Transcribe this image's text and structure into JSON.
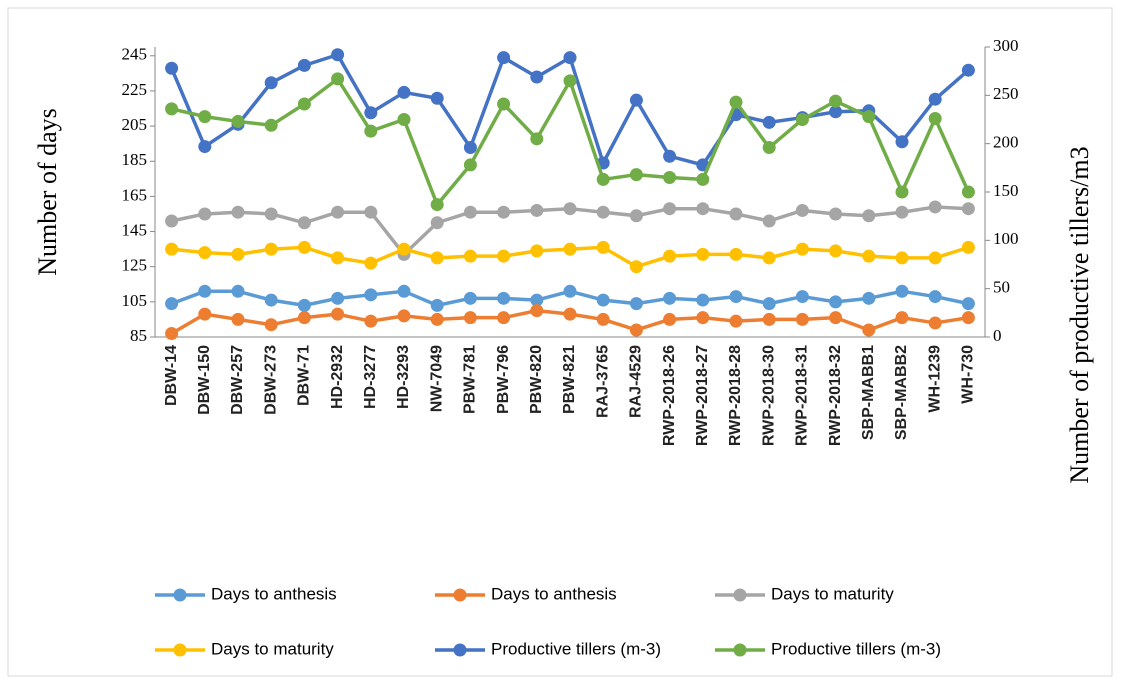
{
  "chart_data": {
    "type": "line",
    "y_label": "Number of days",
    "y2_label": "Number of productive tillers/m3",
    "categories": [
      "DBW-14",
      "DBW-150",
      "DBW-257",
      "DBW-273",
      "DBW-71",
      "HD-2932",
      "HD-3277",
      "HD-3293",
      "NW-7049",
      "PBW-781",
      "PBW-796",
      "PBW-820",
      "PBW-821",
      "RAJ-3765",
      "RAJ-4529",
      "RWP-2018-26",
      "RWP-2018-27",
      "RWP-2018-28",
      "RWP-2018-30",
      "RWP-2018-31",
      "RWP-2018-32",
      "SBP-MABB1",
      "SBP-MABB2",
      "WH-1239",
      "WH-730"
    ],
    "ylim": [
      85,
      250
    ],
    "yticks": [
      85,
      105,
      125,
      145,
      165,
      185,
      205,
      225,
      245
    ],
    "y2lim": [
      0,
      300
    ],
    "y2ticks": [
      0,
      50,
      100,
      150,
      200,
      250,
      300
    ],
    "grid": false,
    "series": [
      {
        "name": "Days to anthesis",
        "color": "#5b9bd5",
        "values": [
          104,
          111,
          111,
          106,
          103,
          107,
          109,
          111,
          103,
          107,
          107,
          106,
          111,
          106,
          104,
          107,
          106,
          108,
          104,
          108,
          105,
          107,
          111,
          108,
          104
        ]
      },
      {
        "name": "Days to anthesis",
        "color": "#ed7d31",
        "values": [
          87,
          98,
          95,
          92,
          96,
          98,
          94,
          97,
          95,
          96,
          96,
          100,
          98,
          95,
          89,
          95,
          96,
          94,
          95,
          95,
          96,
          89,
          96,
          93,
          96
        ]
      },
      {
        "name": "Days to maturity",
        "color": "#a5a5a5",
        "values": [
          151,
          155,
          156,
          155,
          150,
          156,
          156,
          132,
          150,
          156,
          156,
          157,
          158,
          156,
          154,
          158,
          158,
          155,
          151,
          157,
          155,
          154,
          156,
          159,
          158
        ]
      },
      {
        "name": "Days to maturity",
        "color": "#ffc000",
        "values": [
          135,
          133,
          132,
          135,
          136,
          130,
          127,
          135,
          130,
          131,
          131,
          134,
          135,
          136,
          125,
          131,
          132,
          132,
          130,
          135,
          134,
          131,
          130,
          130,
          136
        ]
      },
      {
        "name": "Productive tillers (m-3)",
        "color": "#4472c4",
        "axis": "y2",
        "values": [
          278,
          197,
          220,
          263,
          281,
          292,
          232,
          253,
          247,
          196,
          289,
          269,
          289,
          180,
          245,
          187,
          178,
          230,
          222,
          227,
          233,
          234,
          202,
          246,
          276
        ]
      },
      {
        "name": "Productive tillers (m-3)",
        "color": "#70ad47",
        "axis": "y2",
        "values": [
          236,
          228,
          223,
          219,
          241,
          267,
          213,
          225,
          137,
          178,
          241,
          205,
          265,
          163,
          168,
          165,
          163,
          243,
          196,
          225,
          244,
          228,
          150,
          226,
          150
        ]
      }
    ]
  }
}
